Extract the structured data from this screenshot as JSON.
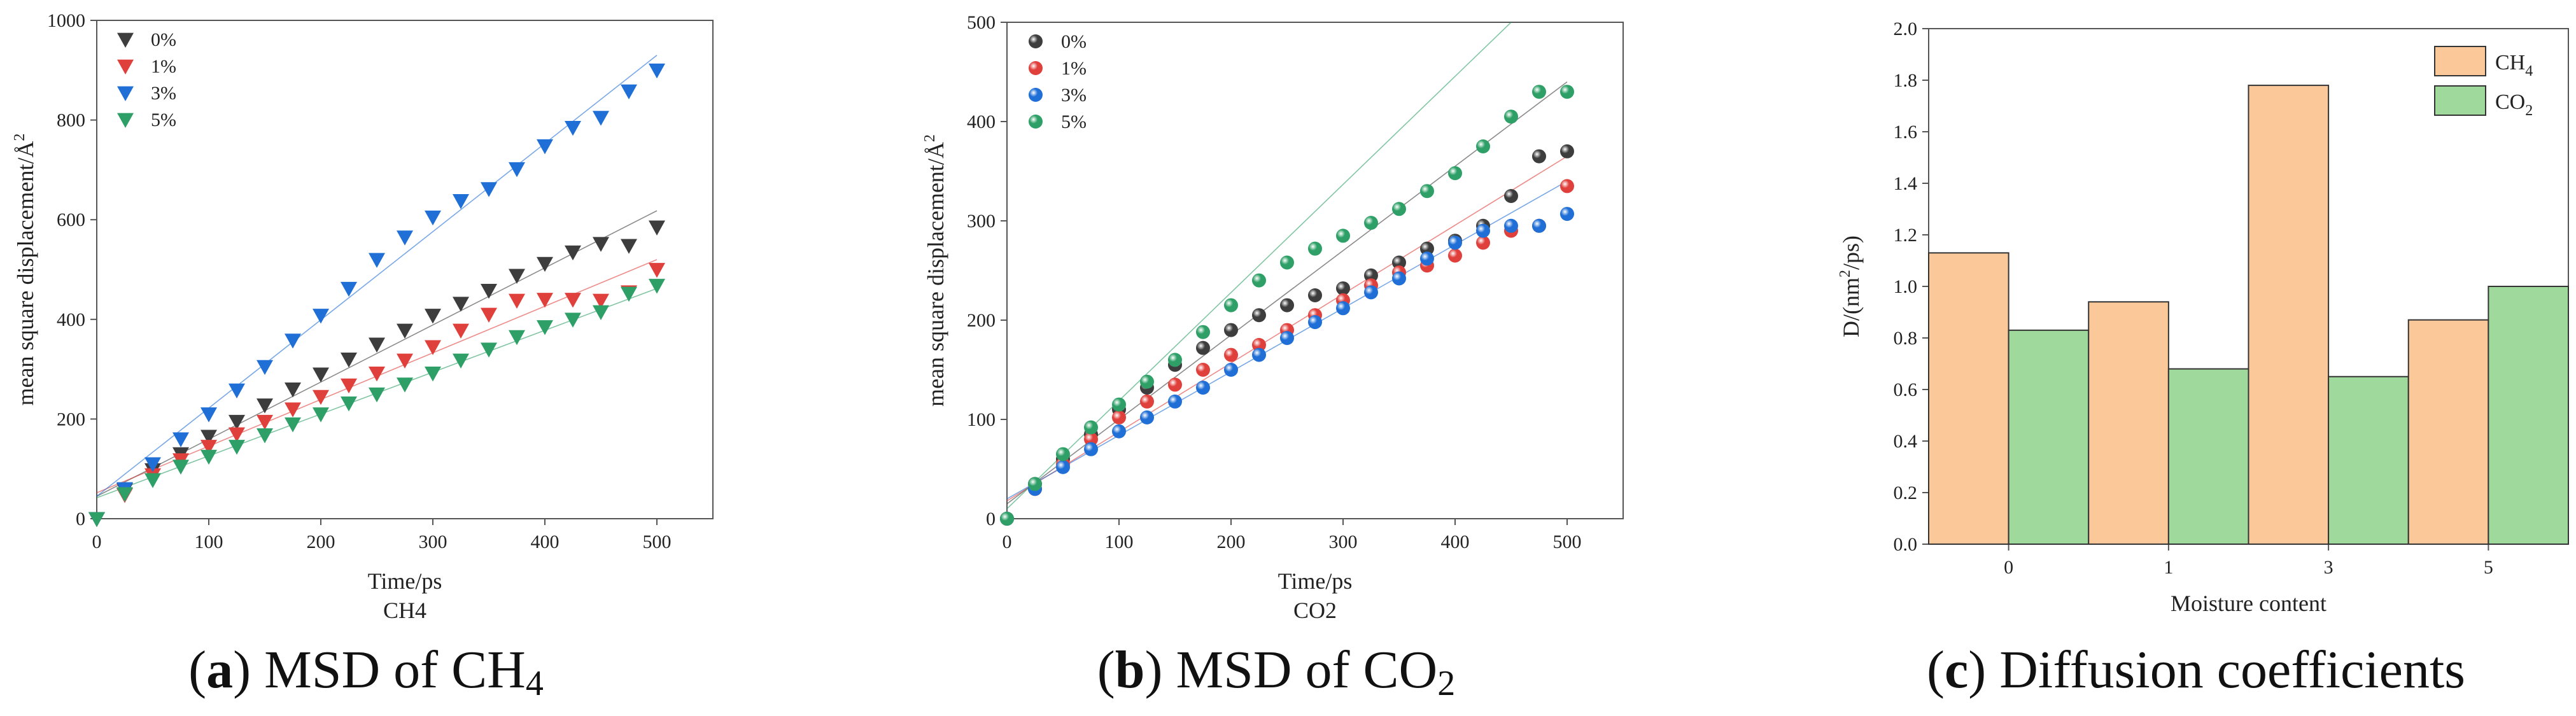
{
  "colors": {
    "black": "#3d3d3d",
    "red": "#e0403c",
    "blue": "#1f6fd6",
    "green": "#2ea067",
    "ch4_bar": "#fbc89a",
    "co2_bar": "#9fd99c",
    "axis": "#555555"
  },
  "captions": [
    {
      "letter": "a",
      "open": "(",
      "close": ") MSD of CH",
      "sub": "4"
    },
    {
      "letter": "b",
      "open": "(",
      "close": ") MSD of CO",
      "sub": "2"
    },
    {
      "letter": "c",
      "open": "(",
      "close": ") Diffusion coefficients",
      "sub": ""
    }
  ],
  "chart_data": [
    {
      "type": "scatter",
      "xlabel": "Time/ps",
      "ylabel_main": "mean square displacement/Å",
      "ylabel_sup": "2",
      "sublabel": "CH4",
      "xlim": [
        0,
        550
      ],
      "ylim": [
        0,
        1000
      ],
      "xticks": [
        0,
        100,
        200,
        300,
        400,
        500
      ],
      "yticks": [
        0,
        200,
        400,
        600,
        800,
        1000
      ],
      "legend_placement": "top-left",
      "marker": "triangle-down",
      "x": [
        0,
        25,
        50,
        75,
        100,
        125,
        150,
        175,
        200,
        225,
        250,
        275,
        300,
        325,
        350,
        375,
        400,
        425,
        450,
        475,
        500
      ],
      "series": [
        {
          "name": "0%",
          "color": "#3d3d3d",
          "values": [
            0,
            58,
            98,
            130,
            165,
            195,
            228,
            260,
            290,
            320,
            350,
            378,
            408,
            432,
            458,
            488,
            512,
            535,
            552,
            548,
            585
          ],
          "fit": {
            "x0": 0,
            "y0": 45,
            "x1": 500,
            "y1": 618
          }
        },
        {
          "name": "1%",
          "color": "#e0403c",
          "values": [
            0,
            48,
            88,
            118,
            145,
            170,
            195,
            220,
            245,
            268,
            292,
            318,
            345,
            378,
            410,
            438,
            440,
            440,
            438,
            455,
            500
          ],
          "fit": {
            "x0": 0,
            "y0": 52,
            "x1": 500,
            "y1": 520
          }
        },
        {
          "name": "3%",
          "color": "#1f6fd6",
          "values": [
            0,
            60,
            110,
            160,
            210,
            258,
            305,
            358,
            408,
            462,
            520,
            565,
            605,
            638,
            662,
            702,
            748,
            785,
            805,
            858,
            900
          ],
          "fit": {
            "x0": 0,
            "y0": 45,
            "x1": 500,
            "y1": 930
          }
        },
        {
          "name": "5%",
          "color": "#2ea067",
          "values": [
            0,
            50,
            78,
            105,
            125,
            145,
            168,
            190,
            210,
            232,
            250,
            270,
            292,
            318,
            340,
            365,
            385,
            400,
            415,
            452,
            468
          ],
          "fit": {
            "x0": 0,
            "y0": 42,
            "x1": 500,
            "y1": 462
          }
        }
      ]
    },
    {
      "type": "scatter",
      "xlabel": "Time/ps",
      "ylabel_main": "mean square displacement/Å",
      "ylabel_sup": "2",
      "sublabel": "CO2",
      "xlim": [
        0,
        550
      ],
      "ylim": [
        0,
        500
      ],
      "xticks": [
        0,
        100,
        200,
        300,
        400,
        500
      ],
      "yticks": [
        0,
        100,
        200,
        300,
        400,
        500
      ],
      "legend_placement": "top-left",
      "marker": "sphere",
      "x": [
        0,
        25,
        50,
        75,
        100,
        125,
        150,
        175,
        200,
        225,
        250,
        275,
        300,
        325,
        350,
        375,
        400,
        425,
        450,
        475,
        500
      ],
      "series": [
        {
          "name": "0%",
          "color": "#3d3d3d",
          "values": [
            0,
            35,
            60,
            85,
            110,
            132,
            155,
            172,
            190,
            205,
            215,
            225,
            232,
            245,
            258,
            272,
            280,
            295,
            325,
            365,
            370
          ],
          "fit": {
            "x0": 0,
            "y0": 15,
            "x1": 500,
            "y1": 440
          }
        },
        {
          "name": "1%",
          "color": "#e0403c",
          "values": [
            0,
            30,
            55,
            80,
            102,
            118,
            135,
            150,
            165,
            175,
            190,
            205,
            220,
            235,
            248,
            255,
            265,
            278,
            290,
            295,
            335
          ],
          "fit": {
            "x0": 0,
            "y0": 18,
            "x1": 500,
            "y1": 365
          }
        },
        {
          "name": "3%",
          "color": "#1f6fd6",
          "values": [
            0,
            30,
            52,
            70,
            88,
            102,
            118,
            132,
            150,
            165,
            182,
            198,
            212,
            228,
            242,
            262,
            278,
            290,
            295,
            295,
            307
          ],
          "fit": {
            "x0": 0,
            "y0": 20,
            "x1": 500,
            "y1": 340
          }
        },
        {
          "name": "5%",
          "color": "#2ea067",
          "values": [
            0,
            35,
            65,
            92,
            115,
            138,
            160,
            188,
            215,
            240,
            258,
            272,
            285,
            298,
            312,
            330,
            348,
            375,
            405,
            430,
            430
          ],
          "fit": {
            "x0": 0,
            "y0": 10,
            "x1": 450,
            "y1": 500
          }
        }
      ]
    },
    {
      "type": "bar",
      "xlabel": "Moisture content",
      "ylabel_main": "D/(nm",
      "ylabel_sup": "2",
      "ylabel_end": "/ps)",
      "ylim": [
        0,
        2.0
      ],
      "yticks": [
        "0.0",
        "0.2",
        "0.4",
        "0.6",
        "0.8",
        "1.0",
        "1.2",
        "1.4",
        "1.6",
        "1.8",
        "2.0"
      ],
      "categories": [
        "0",
        "1",
        "3",
        "5"
      ],
      "legend_placement": "top-right",
      "series": [
        {
          "name_main": "CH",
          "name_sub": "4",
          "color": "#fbc89a",
          "values": [
            1.13,
            0.94,
            1.78,
            0.87
          ]
        },
        {
          "name_main": "CO",
          "name_sub": "2",
          "color": "#9fd99c",
          "values": [
            0.83,
            0.68,
            0.65,
            1.0
          ]
        }
      ]
    }
  ]
}
